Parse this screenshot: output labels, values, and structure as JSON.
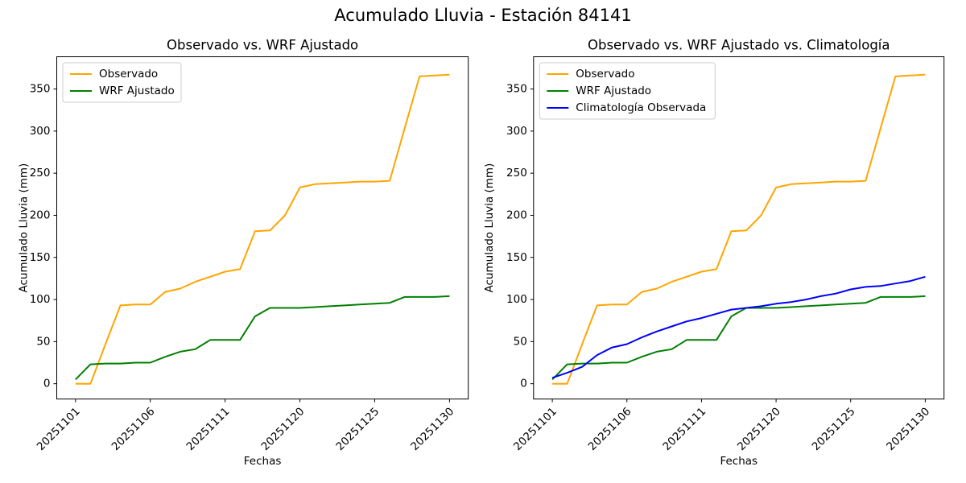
{
  "figure": {
    "title": "Acumulado Lluvia - Estación 84141"
  },
  "chart_data": [
    {
      "type": "line",
      "title": "Observado vs. WRF Ajustado",
      "xlabel": "Fechas",
      "ylabel": "Acumulado Lluvia (mm)",
      "n_points": 26,
      "x_tick_positions": [
        0,
        5,
        10,
        15,
        20,
        25
      ],
      "x_tick_labels": [
        "20251101",
        "20251106",
        "20251111",
        "20251120",
        "20251125",
        "20251130"
      ],
      "y_ticks": [
        0,
        50,
        100,
        150,
        200,
        250,
        300,
        350
      ],
      "ylim": [
        -18.2,
        388.3
      ],
      "grid": false,
      "legend_position": "upper left",
      "series": [
        {
          "name": "Observado",
          "color": "#FFA500",
          "values": [
            0,
            0,
            47,
            93,
            94,
            94,
            109,
            113,
            121,
            127,
            133,
            136,
            181,
            182,
            200,
            233,
            237,
            238,
            239,
            240,
            240,
            241,
            303,
            365,
            366,
            367
          ]
        },
        {
          "name": "WRF Ajustado",
          "color": "#008000",
          "values": [
            5,
            23,
            24,
            24,
            25,
            25,
            32,
            38,
            41,
            52,
            52,
            52,
            80,
            90,
            90,
            90,
            91,
            92,
            93,
            94,
            95,
            96,
            103,
            103,
            103,
            104
          ]
        }
      ]
    },
    {
      "type": "line",
      "title": "Observado vs. WRF Ajustado vs. Climatología",
      "xlabel": "Fechas",
      "ylabel": "Acumulado Lluvia (mm)",
      "n_points": 26,
      "x_tick_positions": [
        0,
        5,
        10,
        15,
        20,
        25
      ],
      "x_tick_labels": [
        "20251101",
        "20251106",
        "20251111",
        "20251120",
        "20251125",
        "20251130"
      ],
      "y_ticks": [
        0,
        50,
        100,
        150,
        200,
        250,
        300,
        350
      ],
      "ylim": [
        -18.2,
        388.3
      ],
      "grid": false,
      "legend_position": "upper left",
      "series": [
        {
          "name": "Observado",
          "color": "#FFA500",
          "values": [
            0,
            0,
            47,
            93,
            94,
            94,
            109,
            113,
            121,
            127,
            133,
            136,
            181,
            182,
            200,
            233,
            237,
            238,
            239,
            240,
            240,
            241,
            303,
            365,
            366,
            367
          ]
        },
        {
          "name": "WRF Ajustado",
          "color": "#008000",
          "values": [
            5,
            23,
            24,
            24,
            25,
            25,
            32,
            38,
            41,
            52,
            52,
            52,
            80,
            90,
            90,
            90,
            91,
            92,
            93,
            94,
            95,
            96,
            103,
            103,
            103,
            104
          ]
        },
        {
          "name": "Climatología Observada",
          "color": "#0000FF",
          "values": [
            7,
            13,
            20,
            34,
            43,
            47,
            55,
            62,
            68,
            74,
            78,
            83,
            88,
            90,
            92,
            95,
            97,
            100,
            104,
            107,
            112,
            115,
            116,
            119,
            122,
            127
          ]
        }
      ]
    }
  ]
}
